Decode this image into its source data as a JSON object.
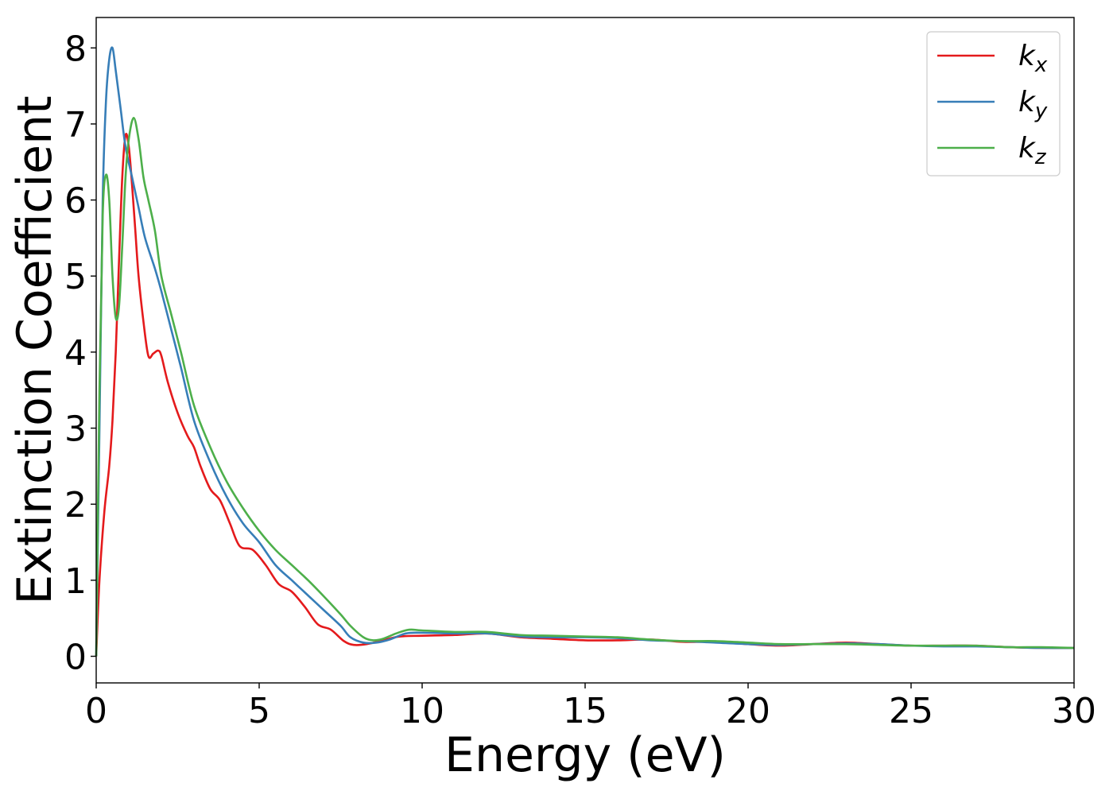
{
  "chart_data": {
    "type": "line",
    "title": "",
    "xlabel": "Energy (eV)",
    "ylabel": "Extinction Coefficient",
    "xlim": [
      0,
      30
    ],
    "ylim": [
      -0.35,
      8.4
    ],
    "xticks": [
      0,
      5,
      10,
      15,
      20,
      25,
      30
    ],
    "yticks": [
      0,
      1,
      2,
      3,
      4,
      5,
      6,
      7,
      8
    ],
    "grid": false,
    "legend_position": "top-right",
    "series": [
      {
        "name": "k",
        "subscript": "x",
        "color": "#e41a1c",
        "points": [
          [
            0,
            0
          ],
          [
            0.1,
            1.0
          ],
          [
            0.25,
            1.9
          ],
          [
            0.4,
            2.5
          ],
          [
            0.5,
            3.1
          ],
          [
            0.6,
            4.0
          ],
          [
            0.7,
            5.2
          ],
          [
            0.8,
            6.3
          ],
          [
            0.9,
            6.85
          ],
          [
            1.0,
            6.7
          ],
          [
            1.1,
            6.2
          ],
          [
            1.2,
            5.6
          ],
          [
            1.3,
            5.0
          ],
          [
            1.45,
            4.4
          ],
          [
            1.6,
            3.95
          ],
          [
            1.75,
            3.98
          ],
          [
            1.9,
            4.02
          ],
          [
            2.0,
            3.95
          ],
          [
            2.2,
            3.6
          ],
          [
            2.5,
            3.2
          ],
          [
            2.8,
            2.9
          ],
          [
            3.0,
            2.75
          ],
          [
            3.2,
            2.5
          ],
          [
            3.5,
            2.2
          ],
          [
            3.8,
            2.05
          ],
          [
            4.1,
            1.75
          ],
          [
            4.4,
            1.45
          ],
          [
            4.8,
            1.4
          ],
          [
            5.2,
            1.2
          ],
          [
            5.6,
            0.95
          ],
          [
            6.0,
            0.85
          ],
          [
            6.4,
            0.65
          ],
          [
            6.8,
            0.42
          ],
          [
            7.2,
            0.35
          ],
          [
            7.6,
            0.2
          ],
          [
            7.9,
            0.15
          ],
          [
            8.3,
            0.16
          ],
          [
            8.8,
            0.21
          ],
          [
            9.3,
            0.26
          ],
          [
            10.0,
            0.27
          ],
          [
            11.0,
            0.28
          ],
          [
            12.0,
            0.3
          ],
          [
            13.0,
            0.25
          ],
          [
            14.0,
            0.23
          ],
          [
            15.0,
            0.21
          ],
          [
            16.0,
            0.21
          ],
          [
            17.0,
            0.22
          ],
          [
            18.0,
            0.19
          ],
          [
            19.0,
            0.19
          ],
          [
            20.0,
            0.16
          ],
          [
            21.0,
            0.14
          ],
          [
            22.0,
            0.16
          ],
          [
            23.0,
            0.18
          ],
          [
            24.0,
            0.16
          ],
          [
            25.0,
            0.14
          ],
          [
            26.0,
            0.14
          ],
          [
            27.0,
            0.14
          ],
          [
            28.0,
            0.12
          ],
          [
            29.0,
            0.11
          ],
          [
            30.0,
            0.11
          ]
        ]
      },
      {
        "name": "k",
        "subscript": "y",
        "color": "#377eb8",
        "points": [
          [
            0,
            0
          ],
          [
            0.1,
            3.0
          ],
          [
            0.2,
            6.0
          ],
          [
            0.3,
            7.3
          ],
          [
            0.4,
            7.85
          ],
          [
            0.5,
            8.0
          ],
          [
            0.6,
            7.7
          ],
          [
            0.75,
            7.2
          ],
          [
            0.9,
            6.7
          ],
          [
            1.1,
            6.3
          ],
          [
            1.3,
            5.9
          ],
          [
            1.5,
            5.5
          ],
          [
            1.8,
            5.1
          ],
          [
            2.0,
            4.8
          ],
          [
            2.3,
            4.3
          ],
          [
            2.6,
            3.8
          ],
          [
            3.0,
            3.1
          ],
          [
            3.5,
            2.55
          ],
          [
            4.0,
            2.1
          ],
          [
            4.5,
            1.75
          ],
          [
            5.0,
            1.5
          ],
          [
            5.5,
            1.2
          ],
          [
            6.0,
            1.0
          ],
          [
            6.5,
            0.8
          ],
          [
            7.0,
            0.6
          ],
          [
            7.5,
            0.4
          ],
          [
            7.8,
            0.25
          ],
          [
            8.2,
            0.18
          ],
          [
            8.6,
            0.18
          ],
          [
            9.0,
            0.22
          ],
          [
            9.5,
            0.3
          ],
          [
            10.0,
            0.31
          ],
          [
            11.0,
            0.3
          ],
          [
            12.0,
            0.3
          ],
          [
            13.0,
            0.26
          ],
          [
            14.0,
            0.25
          ],
          [
            15.0,
            0.25
          ],
          [
            16.0,
            0.24
          ],
          [
            17.0,
            0.21
          ],
          [
            18.0,
            0.2
          ],
          [
            19.0,
            0.18
          ],
          [
            20.0,
            0.16
          ],
          [
            21.0,
            0.15
          ],
          [
            22.0,
            0.16
          ],
          [
            23.0,
            0.17
          ],
          [
            24.0,
            0.16
          ],
          [
            25.0,
            0.14
          ],
          [
            26.0,
            0.13
          ],
          [
            27.0,
            0.13
          ],
          [
            28.0,
            0.12
          ],
          [
            29.0,
            0.11
          ],
          [
            30.0,
            0.11
          ]
        ]
      },
      {
        "name": "k",
        "subscript": "z",
        "color": "#4daf4a",
        "points": [
          [
            0,
            0
          ],
          [
            0.1,
            3.5
          ],
          [
            0.2,
            5.8
          ],
          [
            0.3,
            6.33
          ],
          [
            0.4,
            6.0
          ],
          [
            0.5,
            5.0
          ],
          [
            0.6,
            4.45
          ],
          [
            0.7,
            4.6
          ],
          [
            0.8,
            5.4
          ],
          [
            0.9,
            6.3
          ],
          [
            1.0,
            6.8
          ],
          [
            1.15,
            7.08
          ],
          [
            1.3,
            6.8
          ],
          [
            1.45,
            6.3
          ],
          [
            1.6,
            6.0
          ],
          [
            1.8,
            5.6
          ],
          [
            2.0,
            5.0
          ],
          [
            2.3,
            4.5
          ],
          [
            2.6,
            4.0
          ],
          [
            3.0,
            3.3
          ],
          [
            3.5,
            2.75
          ],
          [
            4.0,
            2.3
          ],
          [
            4.5,
            1.95
          ],
          [
            5.0,
            1.65
          ],
          [
            5.5,
            1.4
          ],
          [
            6.0,
            1.2
          ],
          [
            6.5,
            1.0
          ],
          [
            7.0,
            0.78
          ],
          [
            7.5,
            0.55
          ],
          [
            7.8,
            0.4
          ],
          [
            8.2,
            0.25
          ],
          [
            8.5,
            0.21
          ],
          [
            8.8,
            0.23
          ],
          [
            9.2,
            0.3
          ],
          [
            9.6,
            0.35
          ],
          [
            10.0,
            0.34
          ],
          [
            11.0,
            0.32
          ],
          [
            12.0,
            0.32
          ],
          [
            13.0,
            0.28
          ],
          [
            14.0,
            0.27
          ],
          [
            15.0,
            0.26
          ],
          [
            16.0,
            0.25
          ],
          [
            17.0,
            0.22
          ],
          [
            18.0,
            0.2
          ],
          [
            19.0,
            0.2
          ],
          [
            20.0,
            0.18
          ],
          [
            21.0,
            0.16
          ],
          [
            22.0,
            0.16
          ],
          [
            23.0,
            0.16
          ],
          [
            24.0,
            0.15
          ],
          [
            25.0,
            0.14
          ],
          [
            26.0,
            0.14
          ],
          [
            27.0,
            0.14
          ],
          [
            28.0,
            0.12
          ],
          [
            29.0,
            0.12
          ],
          [
            30.0,
            0.11
          ]
        ]
      }
    ]
  }
}
